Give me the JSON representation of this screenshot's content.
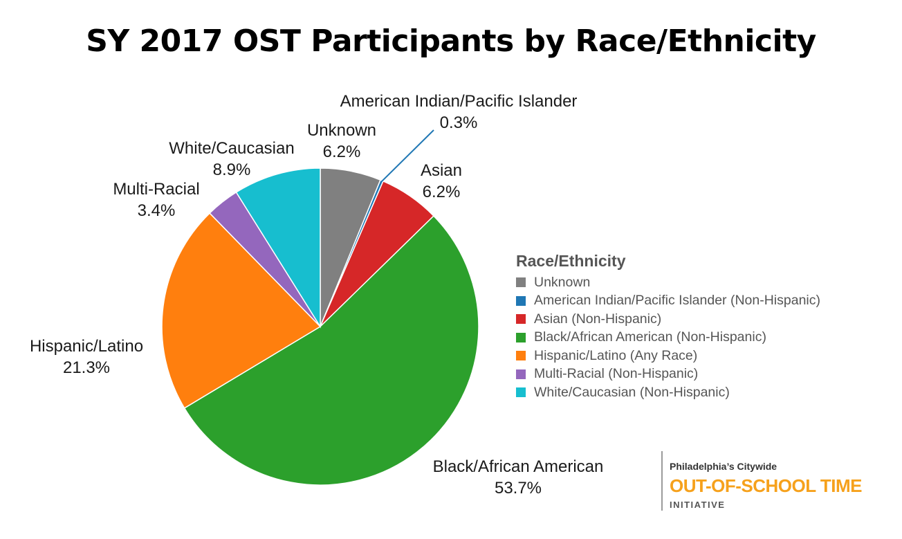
{
  "chart_data": {
    "type": "pie",
    "title": "SY 2017 OST Participants by Race/Ethnicity",
    "legend": {
      "title": "Race/Ethnicity",
      "placement": "right"
    },
    "slices": [
      {
        "label": "Unknown",
        "value": 6.2,
        "value_label": "6.2%",
        "legend": "Unknown",
        "color": "#808080"
      },
      {
        "label": "American Indian/Pacific Islander",
        "value": 0.3,
        "value_label": "0.3%",
        "legend": "American Indian/Pacific Islander (Non-Hispanic)",
        "color": "#1f77b4"
      },
      {
        "label": "Asian",
        "value": 6.2,
        "value_label": "6.2%",
        "legend": "Asian (Non-Hispanic)",
        "color": "#d62728"
      },
      {
        "label": "Black/African American",
        "value": 53.7,
        "value_label": "53.7%",
        "legend": "Black/African American (Non-Hispanic)",
        "color": "#2ca02c"
      },
      {
        "label": "Hispanic/Latino",
        "value": 21.3,
        "value_label": "21.3%",
        "legend": "Hispanic/Latino (Any Race)",
        "color": "#ff7f0e"
      },
      {
        "label": "Multi-Racial",
        "value": 3.4,
        "value_label": "3.4%",
        "legend": "Multi-Racial (Non-Hispanic)",
        "color": "#9467bd"
      },
      {
        "label": "White/Caucasian",
        "value": 8.9,
        "value_label": "8.9%",
        "legend": "White/Caucasian (Non-Hispanic)",
        "color": "#17becf"
      }
    ]
  },
  "logo": {
    "line1": "Philadelphia’s Citywide",
    "line2": "OUT-OF-SCHOOL TIME",
    "line3": "INITIATIVE",
    "accent_color": "#f6a11c"
  }
}
